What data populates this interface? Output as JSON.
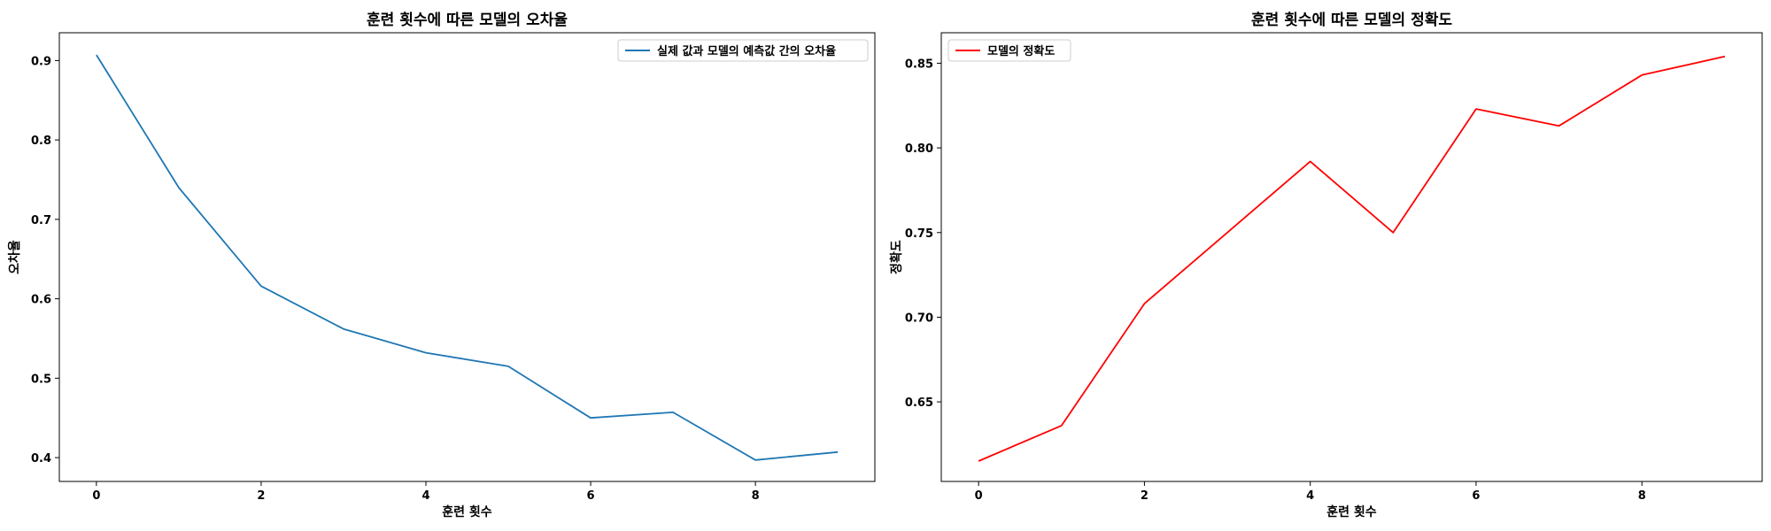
{
  "chart_data": [
    {
      "type": "line",
      "title": "훈련 횟수에 따른 모델의 오차율",
      "xlabel": "훈련 횟수",
      "ylabel": "오차율",
      "x": [
        0,
        1,
        2,
        3,
        4,
        5,
        6,
        7,
        8,
        9
      ],
      "xlim": [
        -0.45,
        9.45
      ],
      "ylim": [
        0.37,
        0.935
      ],
      "xticks": [
        0,
        2,
        4,
        6,
        8
      ],
      "yticks": [
        0.4,
        0.5,
        0.6,
        0.7,
        0.8,
        0.9
      ],
      "ytick_labels": [
        "0.4",
        "0.5",
        "0.6",
        "0.7",
        "0.8",
        "0.9"
      ],
      "grid": false,
      "legend_position": "top-right",
      "series": [
        {
          "name": "실제 값과 모델의 예측값 간의 오차율",
          "color": "#1f77b4",
          "values": [
            0.907,
            0.74,
            0.616,
            0.562,
            0.532,
            0.515,
            0.45,
            0.457,
            0.397,
            0.407
          ]
        }
      ]
    },
    {
      "type": "line",
      "title": "훈련 횟수에 따른 모델의 정확도",
      "xlabel": "훈련 횟수",
      "ylabel": "정확도",
      "x": [
        0,
        1,
        2,
        3,
        4,
        5,
        6,
        7,
        8,
        9
      ],
      "xlim": [
        -0.45,
        9.45
      ],
      "ylim": [
        0.603,
        0.868
      ],
      "xticks": [
        0,
        2,
        4,
        6,
        8
      ],
      "yticks": [
        0.65,
        0.7,
        0.75,
        0.8,
        0.85
      ],
      "ytick_labels": [
        "0.65",
        "0.70",
        "0.75",
        "0.80",
        "0.85"
      ],
      "grid": false,
      "legend_position": "top-left",
      "series": [
        {
          "name": "모델의 정확도",
          "color": "#ff0000",
          "values": [
            0.615,
            0.636,
            0.708,
            0.75,
            0.792,
            0.75,
            0.823,
            0.813,
            0.843,
            0.854
          ]
        }
      ]
    }
  ]
}
